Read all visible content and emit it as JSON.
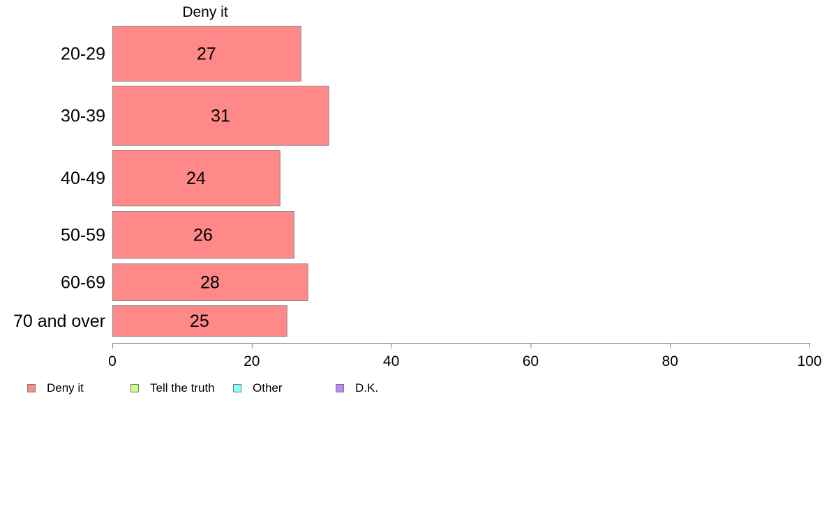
{
  "chart_data": {
    "type": "bar",
    "orientation": "horizontal",
    "stacked": true,
    "title": "Deny it",
    "categories": [
      "20-29",
      "30-39",
      "40-49",
      "50-59",
      "60-69",
      "70 and over"
    ],
    "series": [
      {
        "name": "Deny it",
        "color": "#ff8888",
        "values": [
          27,
          31,
          24,
          26,
          28,
          25
        ]
      }
    ],
    "xlim": [
      0,
      100
    ],
    "xticks": [
      0,
      20,
      40,
      60,
      80,
      100
    ],
    "grid": false,
    "legend": {
      "position": "bottom-left",
      "items": [
        {
          "label": "Deny it",
          "color": "#ff8888"
        },
        {
          "label": "Tell the truth",
          "color": "#ccff88"
        },
        {
          "label": "Other",
          "color": "#88ffff"
        },
        {
          "label": "D.K.",
          "color": "#bb88ff"
        }
      ]
    }
  }
}
